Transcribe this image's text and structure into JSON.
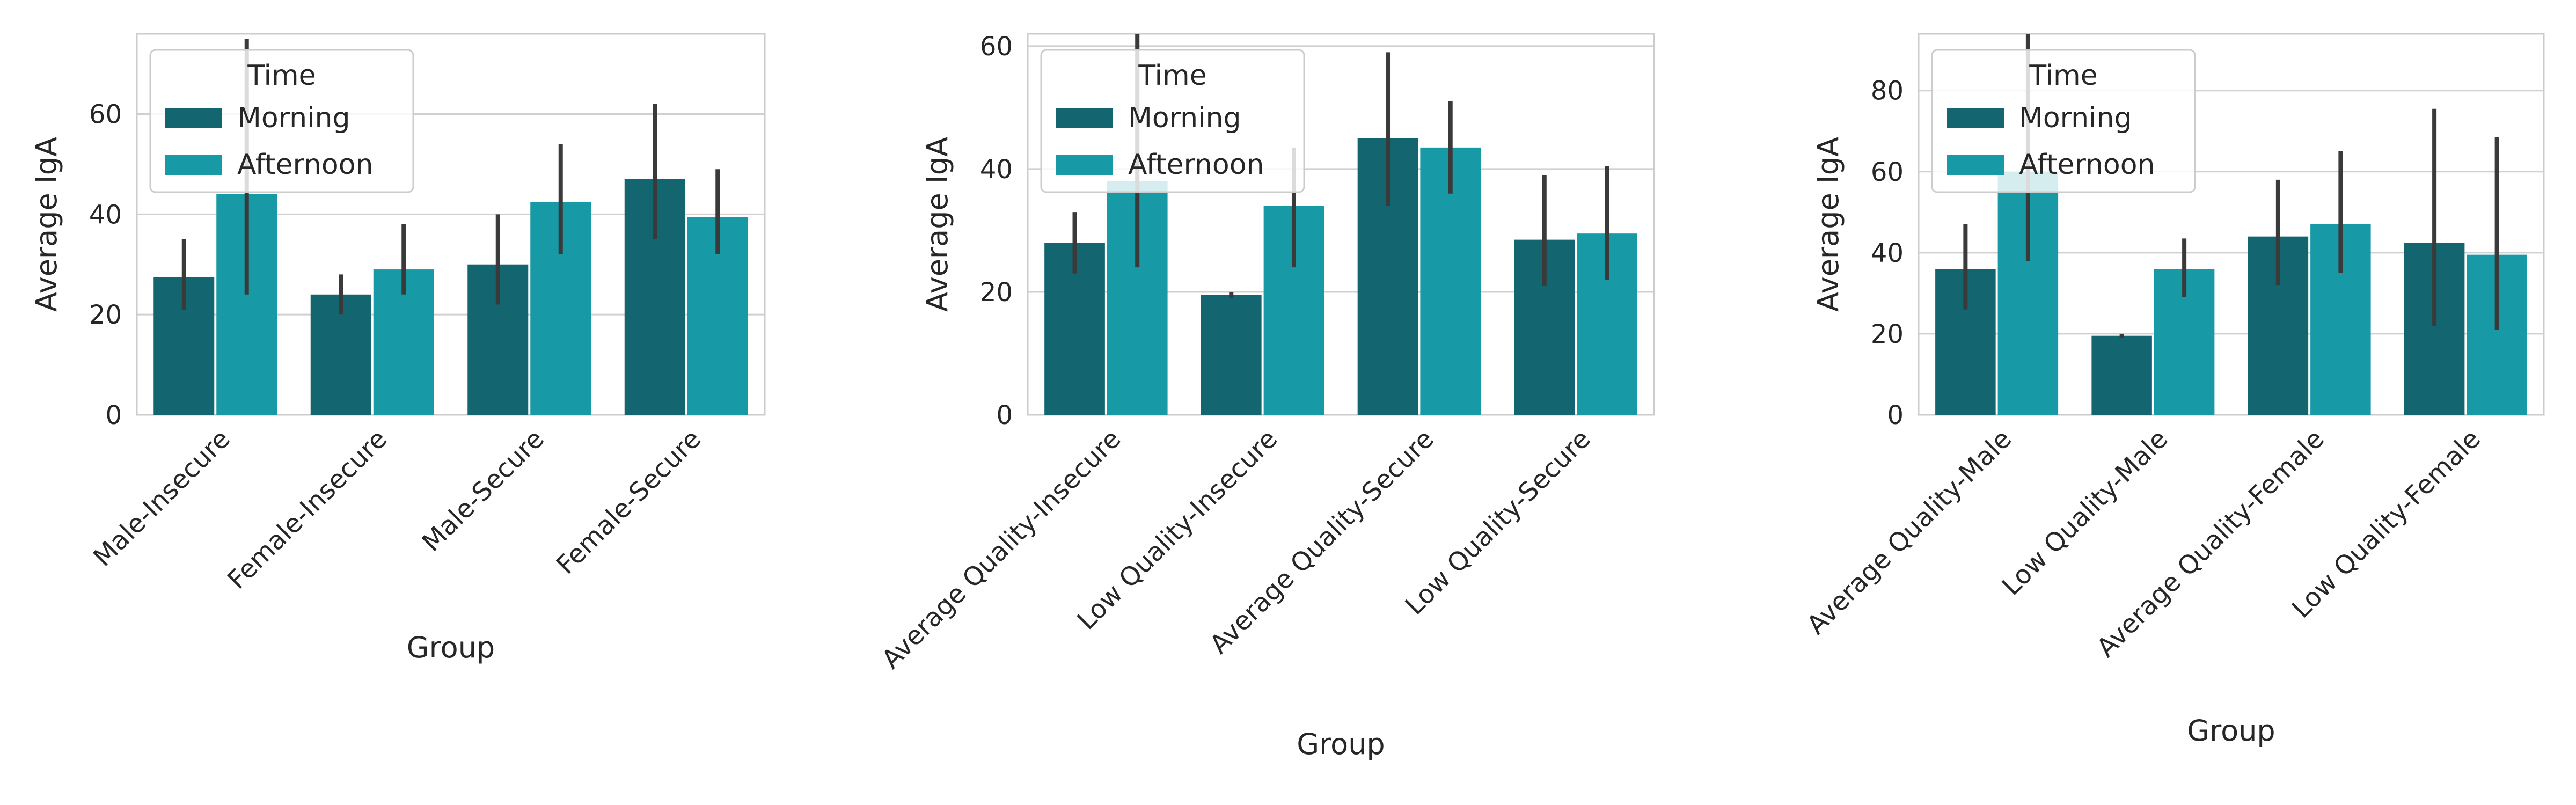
{
  "colors": {
    "morning": "#13666F",
    "afternoon": "#1799A6",
    "errbar": "#3A3A3A",
    "grid": "#D0D0D0",
    "frame": "#CCCCCC"
  },
  "legend": {
    "title": "Time",
    "entries": [
      "Morning",
      "Afternoon"
    ]
  },
  "chart_data": [
    {
      "type": "bar",
      "xlabel": "Group",
      "ylabel": "Average IgA",
      "ylim": [
        0,
        76
      ],
      "yticks": [
        0,
        20,
        40,
        60
      ],
      "grid": true,
      "legend_placement": "top-left",
      "categories": [
        "Male-Insecure",
        "Female-Insecure",
        "Male-Secure",
        "Female-Secure"
      ],
      "series": [
        {
          "name": "Morning",
          "values": [
            27.5,
            24,
            30,
            47
          ],
          "err_low": [
            21,
            20,
            22,
            35
          ],
          "err_high": [
            35,
            28,
            40,
            62
          ]
        },
        {
          "name": "Afternoon",
          "values": [
            44,
            29,
            42.5,
            39.5
          ],
          "err_low": [
            24,
            24,
            32,
            32
          ],
          "err_high": [
            75,
            38,
            54,
            49
          ]
        }
      ]
    },
    {
      "type": "bar",
      "xlabel": "Group",
      "ylabel": "Average IgA",
      "ylim": [
        0,
        62
      ],
      "yticks": [
        0,
        20,
        40,
        60
      ],
      "grid": true,
      "legend_placement": "top-left",
      "categories": [
        "Average Quality-Insecure",
        "Low Quality-Insecure",
        "Average Quality-Secure",
        "Low Quality-Secure"
      ],
      "series": [
        {
          "name": "Morning",
          "values": [
            28,
            19.5,
            45,
            28.5
          ],
          "err_low": [
            23,
            19,
            34,
            21
          ],
          "err_high": [
            33,
            20,
            59,
            39
          ]
        },
        {
          "name": "Afternoon",
          "values": [
            38,
            34,
            43.5,
            29.5
          ],
          "err_low": [
            24,
            24,
            36,
            22
          ],
          "err_high": [
            62,
            43.5,
            51,
            40.5
          ]
        }
      ]
    },
    {
      "type": "bar",
      "xlabel": "Group",
      "ylabel": "Average IgA",
      "ylim": [
        0,
        94
      ],
      "yticks": [
        0,
        20,
        40,
        60,
        80
      ],
      "grid": true,
      "legend_placement": "top-left",
      "categories": [
        "Average Quality-Male",
        "Low Quality-Male",
        "Average Quality-Female",
        "Low Quality-Female"
      ],
      "series": [
        {
          "name": "Morning",
          "values": [
            36,
            19.5,
            44,
            42.5
          ],
          "err_low": [
            26,
            19,
            32,
            22
          ],
          "err_high": [
            47,
            20,
            58,
            75.5
          ]
        },
        {
          "name": "Afternoon",
          "values": [
            60,
            36,
            47,
            39.5
          ],
          "err_low": [
            38,
            29,
            35,
            21
          ],
          "err_high": [
            94,
            43.5,
            65,
            68.5
          ]
        }
      ]
    }
  ]
}
